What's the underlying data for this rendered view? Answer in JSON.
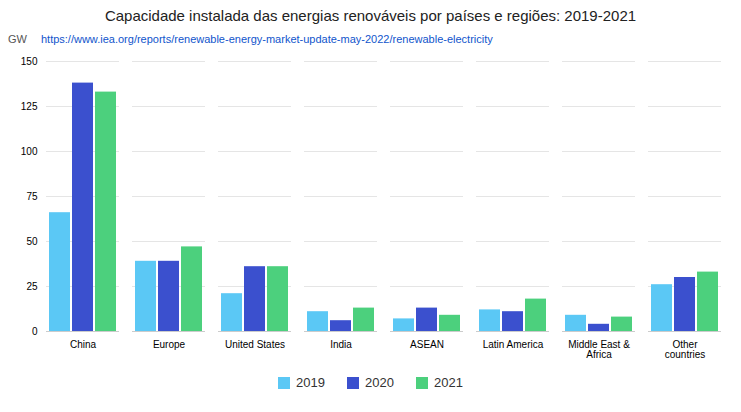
{
  "chart_data": {
    "type": "bar",
    "title": "Capacidade instalada das energias renováveis por países e regiões: 2019-2021",
    "ylabel": "GW",
    "annotations": [
      {
        "text": "https://www.iea.org/reports/renewable-energy-market-update-may-2022/renewable-electricity",
        "color": "#1155CC"
      }
    ],
    "categories": [
      "China",
      "Europe",
      "United States",
      "India",
      "ASEAN",
      "Latin America",
      "Middle East & Africa",
      "Other countries"
    ],
    "series": [
      {
        "name": "2019",
        "color": "#5BC8F5",
        "values": [
          66,
          39,
          21,
          11,
          7,
          12,
          9,
          26
        ]
      },
      {
        "name": "2020",
        "color": "#3B50CE",
        "values": [
          138,
          39,
          36,
          6,
          13,
          11,
          4,
          30
        ]
      },
      {
        "name": "2021",
        "color": "#4CD07D",
        "values": [
          133,
          47,
          36,
          13,
          9,
          18,
          8,
          33
        ]
      }
    ],
    "ylim": [
      0,
      150
    ],
    "yticks": [
      0,
      25,
      50,
      75,
      100,
      125,
      150
    ],
    "grid": true,
    "legend": "bottom"
  }
}
